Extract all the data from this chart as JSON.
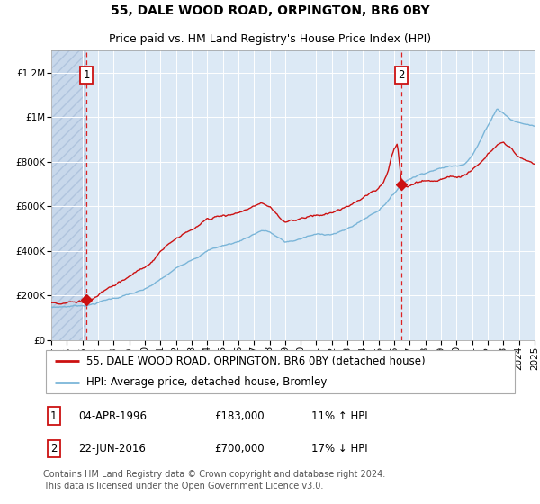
{
  "title": "55, DALE WOOD ROAD, ORPINGTON, BR6 0BY",
  "subtitle": "Price paid vs. HM Land Registry's House Price Index (HPI)",
  "ylim": [
    0,
    1300000
  ],
  "yticks": [
    0,
    200000,
    400000,
    600000,
    800000,
    1000000,
    1200000
  ],
  "ytick_labels": [
    "£0",
    "£200K",
    "£400K",
    "£600K",
    "£800K",
    "£1M",
    "£1.2M"
  ],
  "x_start_year": 1994,
  "x_end_year": 2025,
  "background_color": "#ffffff",
  "plot_bg_color": "#dce9f5",
  "grid_color": "#ffffff",
  "hpi_line_color": "#7ab5d8",
  "price_line_color": "#cc1111",
  "vline_color": "#dd2222",
  "purchase1_year": 1996.27,
  "purchase1_price": 183000,
  "purchase2_year": 2016.47,
  "purchase2_price": 700000,
  "legend_line1": "55, DALE WOOD ROAD, ORPINGTON, BR6 0BY (detached house)",
  "legend_line2": "HPI: Average price, detached house, Bromley",
  "annotation1_date": "04-APR-1996",
  "annotation1_price": "£183,000",
  "annotation1_hpi": "11% ↑ HPI",
  "annotation2_date": "22-JUN-2016",
  "annotation2_price": "£700,000",
  "annotation2_hpi": "17% ↓ HPI",
  "footer": "Contains HM Land Registry data © Crown copyright and database right 2024.\nThis data is licensed under the Open Government Licence v3.0.",
  "title_fontsize": 10,
  "subtitle_fontsize": 9,
  "tick_fontsize": 7.5,
  "legend_fontsize": 8.5,
  "annotation_fontsize": 8.5,
  "footer_fontsize": 7
}
